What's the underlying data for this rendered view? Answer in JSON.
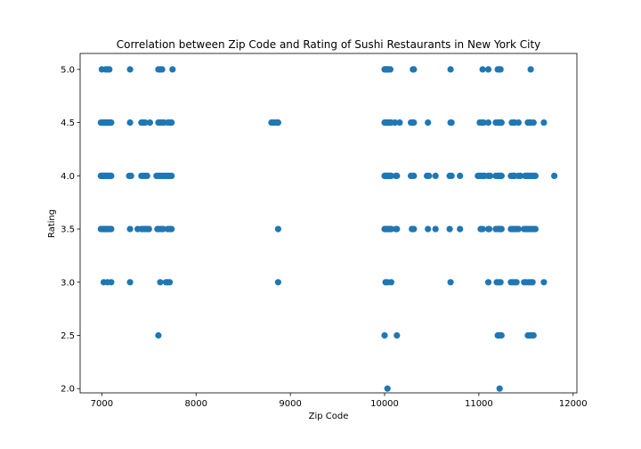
{
  "chart_data": {
    "type": "scatter",
    "title": "Correlation between Zip Code and Rating of Sushi Restaurants in New York City",
    "xlabel": "Zip Code",
    "ylabel": "Rating",
    "xlim": [
      6770,
      12040
    ],
    "ylim": [
      1.96,
      5.15
    ],
    "xticks": [
      7000,
      8000,
      9000,
      10000,
      11000,
      12000
    ],
    "yticks": [
      2.0,
      2.5,
      3.0,
      3.5,
      4.0,
      4.5,
      5.0
    ],
    "xtick_labels": [
      "7000",
      "8000",
      "9000",
      "10000",
      "11000",
      "12000"
    ],
    "ytick_labels": [
      "2.0",
      "2.5",
      "3.0",
      "3.5",
      "4.0",
      "4.5",
      "5.0"
    ],
    "grid": false,
    "marker_color": "#1f77b4",
    "points": [
      [
        7000,
        5.0
      ],
      [
        7040,
        5.0
      ],
      [
        7060,
        5.0
      ],
      [
        7080,
        5.0
      ],
      [
        7300,
        5.0
      ],
      [
        7600,
        5.0
      ],
      [
        7620,
        5.0
      ],
      [
        7640,
        5.0
      ],
      [
        7750,
        5.0
      ],
      [
        10000,
        5.0
      ],
      [
        10010,
        5.0
      ],
      [
        10020,
        5.0
      ],
      [
        10030,
        5.0
      ],
      [
        10040,
        5.0
      ],
      [
        10060,
        5.0
      ],
      [
        10300,
        5.0
      ],
      [
        10310,
        5.0
      ],
      [
        10700,
        5.0
      ],
      [
        11040,
        5.0
      ],
      [
        11100,
        5.0
      ],
      [
        11200,
        5.0
      ],
      [
        11220,
        5.0
      ],
      [
        11230,
        5.0
      ],
      [
        11550,
        5.0
      ],
      [
        6990,
        4.5
      ],
      [
        7010,
        4.5
      ],
      [
        7020,
        4.5
      ],
      [
        7030,
        4.5
      ],
      [
        7040,
        4.5
      ],
      [
        7050,
        4.5
      ],
      [
        7060,
        4.5
      ],
      [
        7070,
        4.5
      ],
      [
        7080,
        4.5
      ],
      [
        7090,
        4.5
      ],
      [
        7100,
        4.5
      ],
      [
        7300,
        4.5
      ],
      [
        7420,
        4.5
      ],
      [
        7440,
        4.5
      ],
      [
        7460,
        4.5
      ],
      [
        7510,
        4.5
      ],
      [
        7600,
        4.5
      ],
      [
        7620,
        4.5
      ],
      [
        7640,
        4.5
      ],
      [
        7660,
        4.5
      ],
      [
        7700,
        4.5
      ],
      [
        7720,
        4.5
      ],
      [
        7740,
        4.5
      ],
      [
        8800,
        4.5
      ],
      [
        8820,
        4.5
      ],
      [
        8840,
        4.5
      ],
      [
        8860,
        4.5
      ],
      [
        8870,
        4.5
      ],
      [
        10000,
        4.5
      ],
      [
        10010,
        4.5
      ],
      [
        10020,
        4.5
      ],
      [
        10030,
        4.5
      ],
      [
        10040,
        4.5
      ],
      [
        10050,
        4.5
      ],
      [
        10060,
        4.5
      ],
      [
        10070,
        4.5
      ],
      [
        10110,
        4.5
      ],
      [
        10160,
        4.5
      ],
      [
        10280,
        4.5
      ],
      [
        10300,
        4.5
      ],
      [
        10310,
        4.5
      ],
      [
        10460,
        4.5
      ],
      [
        10700,
        4.5
      ],
      [
        10710,
        4.5
      ],
      [
        11010,
        4.5
      ],
      [
        11030,
        4.5
      ],
      [
        11050,
        4.5
      ],
      [
        11100,
        4.5
      ],
      [
        11180,
        4.5
      ],
      [
        11200,
        4.5
      ],
      [
        11220,
        4.5
      ],
      [
        11230,
        4.5
      ],
      [
        11240,
        4.5
      ],
      [
        11350,
        4.5
      ],
      [
        11370,
        4.5
      ],
      [
        11380,
        4.5
      ],
      [
        11420,
        4.5
      ],
      [
        11520,
        4.5
      ],
      [
        11540,
        4.5
      ],
      [
        11550,
        4.5
      ],
      [
        11580,
        4.5
      ],
      [
        11690,
        4.5
      ],
      [
        6990,
        4.0
      ],
      [
        7000,
        4.0
      ],
      [
        7010,
        4.0
      ],
      [
        7020,
        4.0
      ],
      [
        7030,
        4.0
      ],
      [
        7040,
        4.0
      ],
      [
        7050,
        4.0
      ],
      [
        7060,
        4.0
      ],
      [
        7070,
        4.0
      ],
      [
        7080,
        4.0
      ],
      [
        7090,
        4.0
      ],
      [
        7100,
        4.0
      ],
      [
        7290,
        4.0
      ],
      [
        7310,
        4.0
      ],
      [
        7420,
        4.0
      ],
      [
        7440,
        4.0
      ],
      [
        7460,
        4.0
      ],
      [
        7480,
        4.0
      ],
      [
        7580,
        4.0
      ],
      [
        7600,
        4.0
      ],
      [
        7620,
        4.0
      ],
      [
        7640,
        4.0
      ],
      [
        7660,
        4.0
      ],
      [
        7680,
        4.0
      ],
      [
        7700,
        4.0
      ],
      [
        7720,
        4.0
      ],
      [
        7740,
        4.0
      ],
      [
        10000,
        4.0
      ],
      [
        10010,
        4.0
      ],
      [
        10020,
        4.0
      ],
      [
        10030,
        4.0
      ],
      [
        10040,
        4.0
      ],
      [
        10050,
        4.0
      ],
      [
        10060,
        4.0
      ],
      [
        10070,
        4.0
      ],
      [
        10120,
        4.0
      ],
      [
        10130,
        4.0
      ],
      [
        10280,
        4.0
      ],
      [
        10300,
        4.0
      ],
      [
        10310,
        4.0
      ],
      [
        10450,
        4.0
      ],
      [
        10470,
        4.0
      ],
      [
        10540,
        4.0
      ],
      [
        10690,
        4.0
      ],
      [
        10710,
        4.0
      ],
      [
        10800,
        4.0
      ],
      [
        10990,
        4.0
      ],
      [
        11010,
        4.0
      ],
      [
        11030,
        4.0
      ],
      [
        11050,
        4.0
      ],
      [
        11060,
        4.0
      ],
      [
        11100,
        4.0
      ],
      [
        11120,
        4.0
      ],
      [
        11180,
        4.0
      ],
      [
        11200,
        4.0
      ],
      [
        11210,
        4.0
      ],
      [
        11220,
        4.0
      ],
      [
        11230,
        4.0
      ],
      [
        11240,
        4.0
      ],
      [
        11340,
        4.0
      ],
      [
        11360,
        4.0
      ],
      [
        11370,
        4.0
      ],
      [
        11380,
        4.0
      ],
      [
        11420,
        4.0
      ],
      [
        11440,
        4.0
      ],
      [
        11490,
        4.0
      ],
      [
        11510,
        4.0
      ],
      [
        11520,
        4.0
      ],
      [
        11540,
        4.0
      ],
      [
        11550,
        4.0
      ],
      [
        11570,
        4.0
      ],
      [
        11580,
        4.0
      ],
      [
        11600,
        4.0
      ],
      [
        11800,
        4.0
      ],
      [
        6990,
        3.5
      ],
      [
        7010,
        3.5
      ],
      [
        7020,
        3.5
      ],
      [
        7030,
        3.5
      ],
      [
        7040,
        3.5
      ],
      [
        7050,
        3.5
      ],
      [
        7060,
        3.5
      ],
      [
        7070,
        3.5
      ],
      [
        7090,
        3.5
      ],
      [
        7100,
        3.5
      ],
      [
        7300,
        3.5
      ],
      [
        7380,
        3.5
      ],
      [
        7420,
        3.5
      ],
      [
        7440,
        3.5
      ],
      [
        7460,
        3.5
      ],
      [
        7480,
        3.5
      ],
      [
        7500,
        3.5
      ],
      [
        7590,
        3.5
      ],
      [
        7610,
        3.5
      ],
      [
        7630,
        3.5
      ],
      [
        7650,
        3.5
      ],
      [
        7700,
        3.5
      ],
      [
        7720,
        3.5
      ],
      [
        7740,
        3.5
      ],
      [
        8870,
        3.5
      ],
      [
        10000,
        3.5
      ],
      [
        10010,
        3.5
      ],
      [
        10020,
        3.5
      ],
      [
        10030,
        3.5
      ],
      [
        10040,
        3.5
      ],
      [
        10050,
        3.5
      ],
      [
        10060,
        3.5
      ],
      [
        10070,
        3.5
      ],
      [
        10120,
        3.5
      ],
      [
        10130,
        3.5
      ],
      [
        10290,
        3.5
      ],
      [
        10310,
        3.5
      ],
      [
        10460,
        3.5
      ],
      [
        10540,
        3.5
      ],
      [
        10690,
        3.5
      ],
      [
        10800,
        3.5
      ],
      [
        11020,
        3.5
      ],
      [
        11040,
        3.5
      ],
      [
        11100,
        3.5
      ],
      [
        11110,
        3.5
      ],
      [
        11180,
        3.5
      ],
      [
        11200,
        3.5
      ],
      [
        11220,
        3.5
      ],
      [
        11230,
        3.5
      ],
      [
        11240,
        3.5
      ],
      [
        11340,
        3.5
      ],
      [
        11360,
        3.5
      ],
      [
        11380,
        3.5
      ],
      [
        11400,
        3.5
      ],
      [
        11420,
        3.5
      ],
      [
        11480,
        3.5
      ],
      [
        11500,
        3.5
      ],
      [
        11520,
        3.5
      ],
      [
        11540,
        3.5
      ],
      [
        11560,
        3.5
      ],
      [
        11580,
        3.5
      ],
      [
        11600,
        3.5
      ],
      [
        7020,
        3.0
      ],
      [
        7060,
        3.0
      ],
      [
        7100,
        3.0
      ],
      [
        7300,
        3.0
      ],
      [
        7620,
        3.0
      ],
      [
        7680,
        3.0
      ],
      [
        7700,
        3.0
      ],
      [
        7720,
        3.0
      ],
      [
        8870,
        3.0
      ],
      [
        10010,
        3.0
      ],
      [
        10030,
        3.0
      ],
      [
        10070,
        3.0
      ],
      [
        10700,
        3.0
      ],
      [
        11100,
        3.0
      ],
      [
        11190,
        3.0
      ],
      [
        11210,
        3.0
      ],
      [
        11230,
        3.0
      ],
      [
        11340,
        3.0
      ],
      [
        11360,
        3.0
      ],
      [
        11380,
        3.0
      ],
      [
        11400,
        3.0
      ],
      [
        11480,
        3.0
      ],
      [
        11500,
        3.0
      ],
      [
        11530,
        3.0
      ],
      [
        11550,
        3.0
      ],
      [
        11570,
        3.0
      ],
      [
        11690,
        3.0
      ],
      [
        7600,
        2.5
      ],
      [
        10000,
        2.5
      ],
      [
        10130,
        2.5
      ],
      [
        11200,
        2.5
      ],
      [
        11220,
        2.5
      ],
      [
        11240,
        2.5
      ],
      [
        11520,
        2.5
      ],
      [
        11540,
        2.5
      ],
      [
        11560,
        2.5
      ],
      [
        11580,
        2.5
      ],
      [
        10030,
        2.0
      ],
      [
        11220,
        2.0
      ]
    ]
  }
}
